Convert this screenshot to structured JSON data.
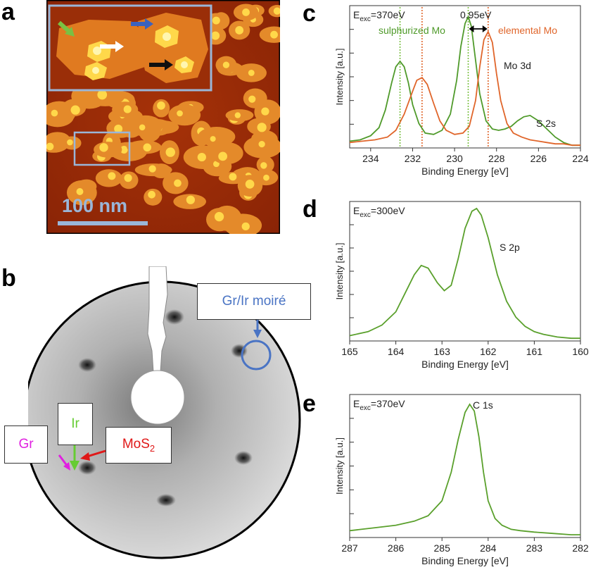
{
  "panels": {
    "a": {
      "letter": "a",
      "scale_bar_label": "100 nm"
    },
    "b": {
      "letter": "b",
      "labels": {
        "gr_ir_moire": "Gr/Ir moiré",
        "gr": "Gr",
        "ir": "Ir",
        "mos2_base": "MoS",
        "mos2_sub": "2"
      },
      "colors": {
        "gr": "#e020e0",
        "ir": "#66cc33",
        "mos2": "#e01818",
        "moire": "#4a74c4"
      }
    }
  },
  "chart_data": [
    {
      "id": "c",
      "letter": "c",
      "type": "line",
      "annotation_exc_main": "E",
      "annotation_exc_sub": "exc",
      "annotation_exc_value": "=370eV",
      "annotations": {
        "sulphurized": "sulphurized Mo",
        "elemental": "elemental Mo",
        "shift": "0.95eV",
        "mo3d": "Mo 3d",
        "s2s": "S 2s"
      },
      "xlabel": "Binding Energy [eV]",
      "ylabel": "Intensity [a.u.]",
      "xlim": [
        235,
        224
      ],
      "x_ticks": [
        234,
        232,
        230,
        228,
        226,
        224
      ],
      "colors": {
        "sulphurized": "#4f9a2a",
        "elemental": "#e0652a"
      },
      "vlines": [
        {
          "x": 232.6,
          "color": "#7bc043"
        },
        {
          "x": 229.35,
          "color": "#7bc043"
        },
        {
          "x": 231.55,
          "color": "#e0652a"
        },
        {
          "x": 228.4,
          "color": "#e0652a"
        }
      ],
      "series": [
        {
          "key": "sulphurized",
          "x": [
            235,
            234.5,
            234,
            233.6,
            233.3,
            233.0,
            232.8,
            232.6,
            232.4,
            232.2,
            232.0,
            231.7,
            231.4,
            231.0,
            230.6,
            230.2,
            229.9,
            229.7,
            229.5,
            229.35,
            229.2,
            229.0,
            228.8,
            228.5,
            228.2,
            227.9,
            227.6,
            227.3,
            227.0,
            226.7,
            226.4,
            226.0,
            225.6,
            225.2,
            224.8,
            224.4,
            224
          ],
          "y": [
            0.05,
            0.06,
            0.09,
            0.15,
            0.28,
            0.48,
            0.6,
            0.64,
            0.6,
            0.48,
            0.32,
            0.18,
            0.11,
            0.1,
            0.13,
            0.25,
            0.5,
            0.75,
            0.92,
            0.97,
            0.9,
            0.65,
            0.4,
            0.2,
            0.14,
            0.13,
            0.14,
            0.16,
            0.2,
            0.23,
            0.24,
            0.2,
            0.14,
            0.08,
            0.04,
            0.02,
            0.02
          ]
        },
        {
          "key": "elemental",
          "x": [
            235,
            234.4,
            233.8,
            233.2,
            232.8,
            232.4,
            232.0,
            231.8,
            231.55,
            231.3,
            231.0,
            230.7,
            230.4,
            230.0,
            229.6,
            229.3,
            229.0,
            228.8,
            228.6,
            228.4,
            228.2,
            228.0,
            227.8,
            227.5,
            227.2,
            226.8,
            226.4,
            226.0,
            225.6,
            225.2,
            224.8,
            224.4,
            224
          ],
          "y": [
            0.04,
            0.05,
            0.06,
            0.08,
            0.13,
            0.25,
            0.42,
            0.5,
            0.52,
            0.47,
            0.33,
            0.2,
            0.13,
            0.1,
            0.11,
            0.16,
            0.35,
            0.6,
            0.8,
            0.86,
            0.78,
            0.55,
            0.35,
            0.18,
            0.11,
            0.08,
            0.06,
            0.05,
            0.04,
            0.03,
            0.03,
            0.02,
            0.02
          ]
        }
      ]
    },
    {
      "id": "d",
      "letter": "d",
      "type": "line",
      "annotation_exc_main": "E",
      "annotation_exc_sub": "exc",
      "annotation_exc_value": "=300eV",
      "annotations": {
        "peak": "S 2p"
      },
      "xlabel": "Binding Energy [eV]",
      "ylabel": "Intensity [a.u.]",
      "xlim": [
        165,
        160
      ],
      "x_ticks": [
        165,
        164,
        163,
        162,
        161,
        160
      ],
      "color": "#5aa02c",
      "series": [
        {
          "key": "s2p",
          "x": [
            165,
            164.6,
            164.3,
            164.0,
            163.8,
            163.6,
            163.45,
            163.3,
            163.1,
            162.95,
            162.8,
            162.65,
            162.5,
            162.35,
            162.25,
            162.15,
            162.0,
            161.8,
            161.6,
            161.4,
            161.2,
            161.0,
            160.8,
            160.5,
            160.2,
            160
          ],
          "y": [
            0.04,
            0.07,
            0.12,
            0.22,
            0.36,
            0.5,
            0.57,
            0.55,
            0.44,
            0.38,
            0.42,
            0.62,
            0.85,
            0.98,
            1.0,
            0.95,
            0.78,
            0.5,
            0.3,
            0.18,
            0.11,
            0.07,
            0.05,
            0.03,
            0.02,
            0.02
          ]
        }
      ]
    },
    {
      "id": "e",
      "letter": "e",
      "type": "line",
      "annotation_exc_main": "E",
      "annotation_exc_sub": "exc",
      "annotation_exc_value": "=370eV",
      "annotations": {
        "peak": "C 1s"
      },
      "xlabel": "Binding Energy [eV]",
      "ylabel": "Intensity [a.u.]",
      "xlim": [
        287,
        282
      ],
      "x_ticks": [
        287,
        286,
        285,
        284,
        283,
        282
      ],
      "color": "#5aa02c",
      "series": [
        {
          "key": "c1s",
          "x": [
            287,
            286.5,
            286.0,
            285.6,
            285.3,
            285.0,
            284.8,
            284.65,
            284.5,
            284.4,
            284.3,
            284.2,
            284.1,
            284.0,
            283.85,
            283.7,
            283.5,
            283.3,
            283.0,
            282.6,
            282.2,
            282
          ],
          "y": [
            0.05,
            0.07,
            0.09,
            0.12,
            0.16,
            0.27,
            0.48,
            0.72,
            0.92,
            0.98,
            0.93,
            0.74,
            0.48,
            0.27,
            0.14,
            0.09,
            0.06,
            0.05,
            0.04,
            0.03,
            0.02,
            0.02
          ]
        }
      ]
    }
  ]
}
